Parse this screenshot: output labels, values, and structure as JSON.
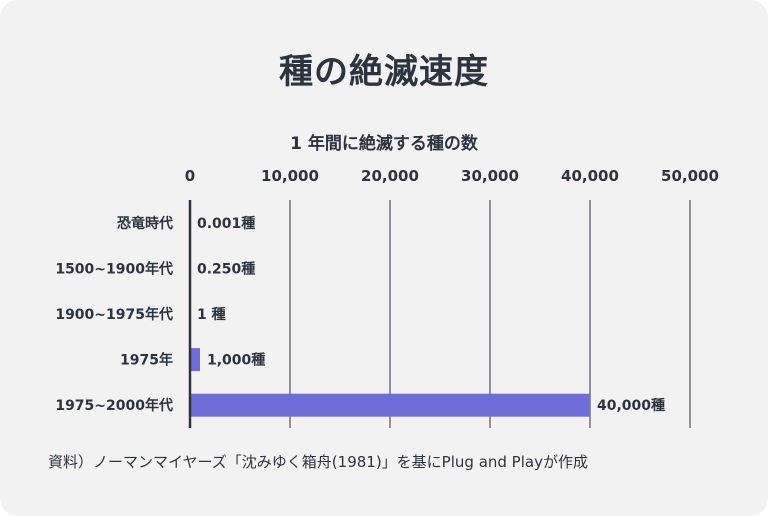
{
  "title": "種の絶滅速度",
  "source": "資料）ノーマンマイヤーズ「沈みゆく箱舟(1981)」を基にPlug and Playが作成",
  "colors": {
    "bar": "#6e6ed6",
    "axis": "#2b3440",
    "grid": "#2b3440",
    "text": "#2b3440",
    "background": "#f2f2f2"
  },
  "chart_data": {
    "type": "bar",
    "orientation": "horizontal",
    "title": "1 年間に絶滅する種の数",
    "xlim": [
      0,
      50000
    ],
    "x_ticks": [
      0,
      10000,
      20000,
      30000,
      40000,
      50000
    ],
    "x_tick_labels": [
      "0",
      "10,000",
      "20,000",
      "30,000",
      "40,000",
      "50,000"
    ],
    "grid": true,
    "categories": [
      "恐竜時代",
      "1500~1900年代",
      "1900~1975年代",
      "1975年",
      "1975~2000年代"
    ],
    "values": [
      0.001,
      0.25,
      1,
      1000,
      40000
    ],
    "data_labels": [
      "0.001種",
      "0.250種",
      "1 種",
      "1,000種",
      "40,000種"
    ]
  }
}
